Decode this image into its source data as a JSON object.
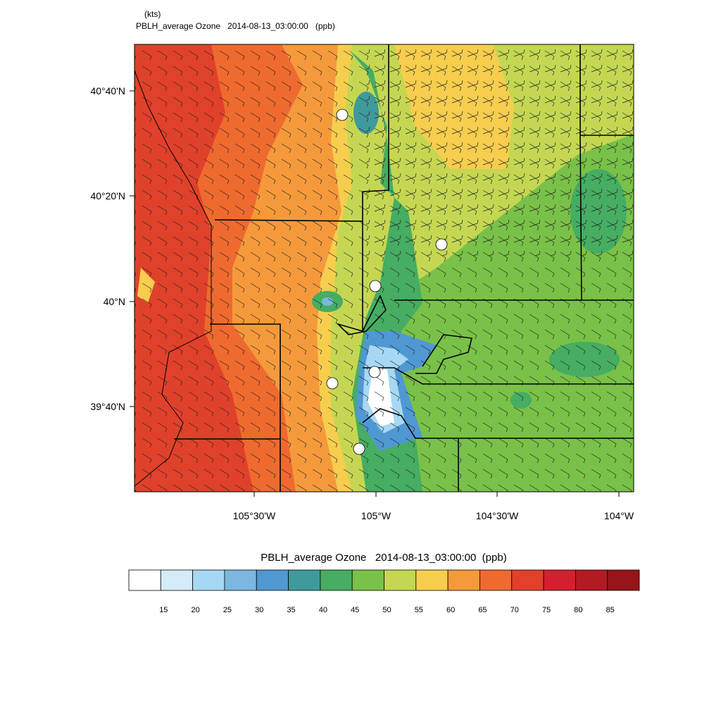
{
  "header": {
    "units": "(kts)",
    "title": "PBLH_average Ozone   2014-08-13_03:00:00   (ppb)"
  },
  "map": {
    "lat_labels": [
      "40°40'N",
      "40°20'N",
      "40°N",
      "39°40'N"
    ],
    "lon_labels": [
      "105°30'W",
      "105°W",
      "104°30'W",
      "104°W"
    ]
  },
  "colorbar": {
    "title": "PBLH_average Ozone   2014-08-13_03:00:00  (ppb)",
    "levels": [
      15,
      20,
      25,
      30,
      35,
      40,
      45,
      50,
      55,
      60,
      65,
      70,
      75,
      80,
      85
    ],
    "colors": [
      "#ffffff",
      "#d4ecf8",
      "#a6d8f4",
      "#7bb7e0",
      "#4f98d2",
      "#3f9a9c",
      "#46ad62",
      "#79c148",
      "#c5d752",
      "#f7cd4e",
      "#f59a3b",
      "#ef6a2f",
      "#e0412b",
      "#d3202f",
      "#b31b23",
      "#951518"
    ]
  }
}
